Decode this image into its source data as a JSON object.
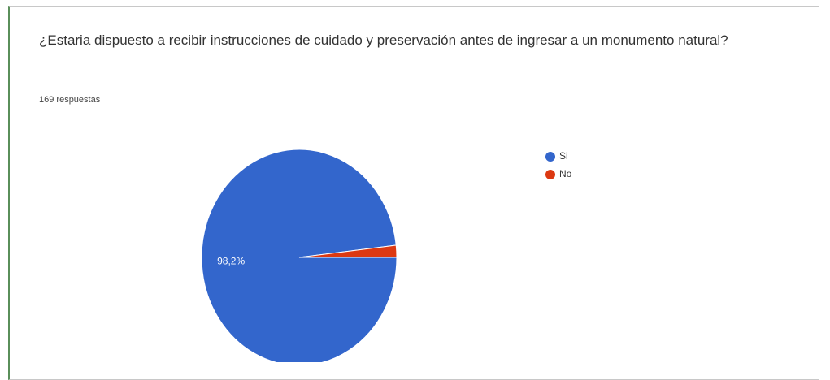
{
  "chart_data": {
    "type": "pie",
    "title": "¿Estaria dispuesto a recibir instrucciones de cuidado y preservación antes de ingresar a un monumento natural?",
    "subtitle": "169 respuestas",
    "categories": [
      "Si",
      "No"
    ],
    "values": [
      98.2,
      1.8
    ],
    "value_labels": [
      "98,2%",
      null
    ],
    "colors": [
      "#3366cc",
      "#dc3912"
    ],
    "legend": "right"
  }
}
